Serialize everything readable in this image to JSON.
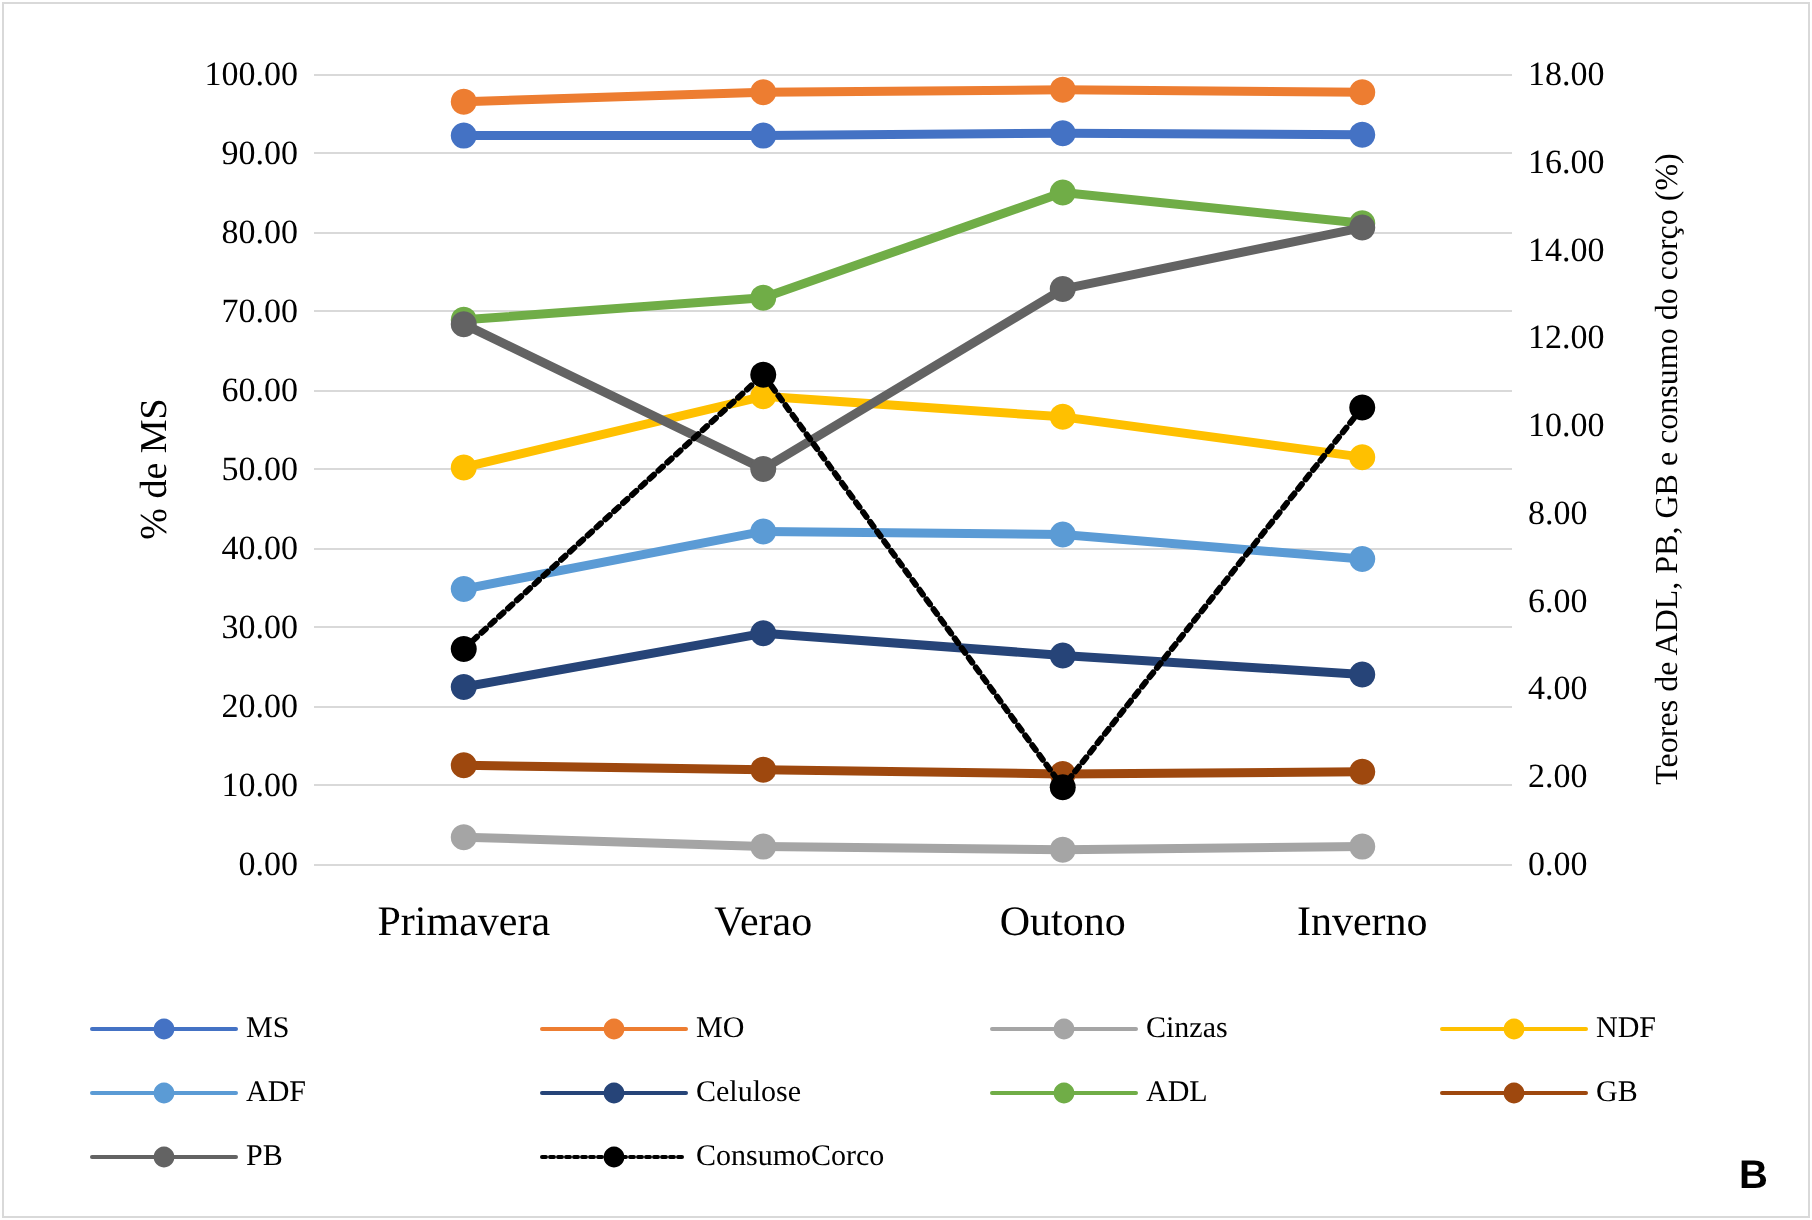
{
  "chart_data": {
    "type": "line",
    "ylabel": "% de MS",
    "y2label": "Teores de ADL, PB, GB e consumo do corço (%)",
    "categories": [
      "Primavera",
      "Verao",
      "Outono",
      "Inverno"
    ],
    "series": [
      {
        "name": "MS",
        "color": "#4472c4",
        "values": [
          92.2,
          92.2,
          92.5,
          92.3
        ]
      },
      {
        "name": "MO",
        "color": "#ed7d31",
        "values": [
          96.5,
          97.7,
          98.0,
          97.7
        ]
      },
      {
        "name": "Cinzas",
        "color": "#a5a5a5",
        "values": [
          3.4,
          2.2,
          1.8,
          2.2
        ]
      },
      {
        "name": "NDF",
        "color": "#ffc000",
        "values": [
          50.2,
          59.2,
          56.6,
          51.5
        ]
      },
      {
        "name": "ADF",
        "color": "#5b9bd5",
        "values": [
          34.8,
          42.1,
          41.7,
          38.6
        ]
      },
      {
        "name": "Celulose",
        "color": "#264478",
        "values": [
          22.4,
          29.2,
          26.4,
          24.0
        ]
      },
      {
        "name": "ADL",
        "color": "#70ad47",
        "axis": "y2",
        "values": [
          12.4,
          12.9,
          15.3,
          14.6
        ]
      },
      {
        "name": "GB",
        "color": "#9e480e",
        "axis": "y2",
        "values": [
          2.25,
          2.15,
          2.05,
          2.1
        ]
      },
      {
        "name": "PB",
        "color": "#636363",
        "axis": "y2",
        "values": [
          12.3,
          9.0,
          13.1,
          14.5
        ]
      },
      {
        "name": "ConsumoCorco",
        "color": "#000000",
        "axis": "y2",
        "line_style": "dotted",
        "values": [
          4.9,
          11.15,
          1.75,
          10.4
        ]
      }
    ],
    "ylim": [
      0,
      100
    ],
    "yticks": [
      {
        "value": 0,
        "label": "0.00"
      },
      {
        "value": 10,
        "label": "10.00"
      },
      {
        "value": 20,
        "label": "20.00"
      },
      {
        "value": 30,
        "label": "30.00"
      },
      {
        "value": 40,
        "label": "40.00"
      },
      {
        "value": 50,
        "label": "50.00"
      },
      {
        "value": 60,
        "label": "60.00"
      },
      {
        "value": 70,
        "label": "70.00"
      },
      {
        "value": 80,
        "label": "80.00"
      },
      {
        "value": 90,
        "label": "90.00"
      },
      {
        "value": 100,
        "label": "100.00"
      }
    ],
    "y2lim": [
      0,
      18
    ],
    "y2ticks": [
      {
        "value": 0,
        "label": "0.00"
      },
      {
        "value": 2,
        "label": "2.00"
      },
      {
        "value": 4,
        "label": "4.00"
      },
      {
        "value": 6,
        "label": "6.00"
      },
      {
        "value": 8,
        "label": "8.00"
      },
      {
        "value": 10,
        "label": "10.00"
      },
      {
        "value": 12,
        "label": "12.00"
      },
      {
        "value": 14,
        "label": "14.00"
      },
      {
        "value": 16,
        "label": "16.00"
      },
      {
        "value": 18,
        "label": "18.00"
      }
    ],
    "grid": "y",
    "legend": "bottom",
    "marker": "circle",
    "line_style": "solid",
    "annotations": [
      "B"
    ]
  }
}
